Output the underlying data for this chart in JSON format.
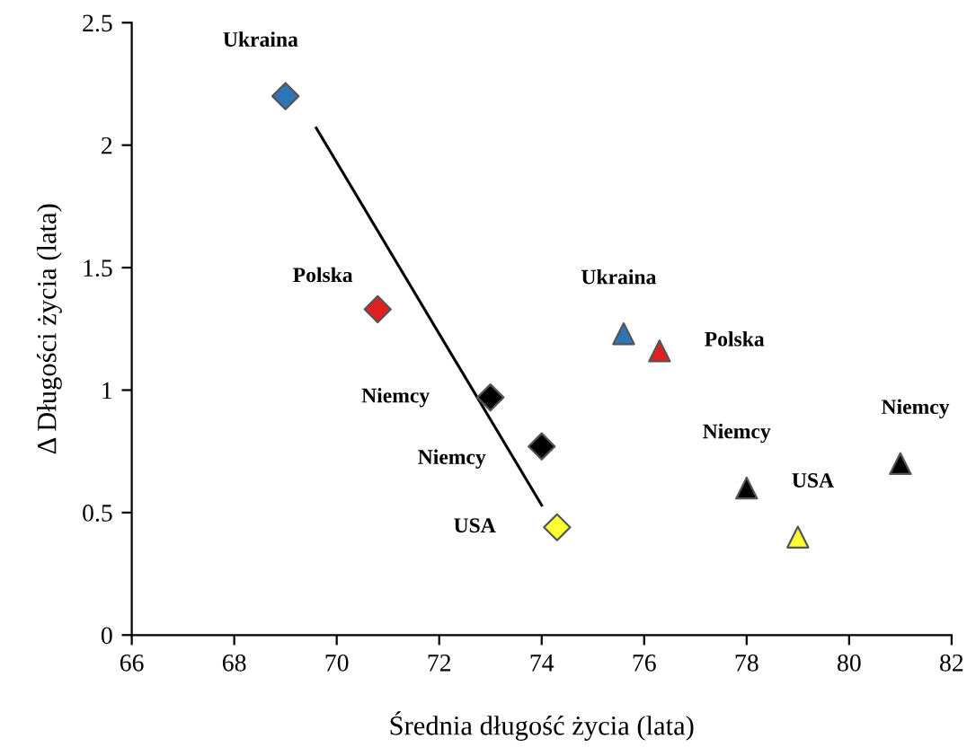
{
  "chart_data": {
    "type": "scatter",
    "xlabel": "Średnia długość życia (lata)",
    "ylabel": "Δ Długości życia (lata)",
    "xlim": [
      66,
      82
    ],
    "xticks": [
      66,
      68,
      70,
      72,
      74,
      76,
      78,
      80,
      82
    ],
    "ylim": [
      0,
      2.5
    ],
    "yticks": [
      0,
      0.5,
      1,
      1.5,
      2,
      2.5
    ],
    "grid": false,
    "legend": false,
    "series": [
      {
        "marker": "diamond",
        "x": [
          69,
          70.8,
          73,
          74,
          74.3
        ],
        "values": [
          2.2,
          1.33,
          0.97,
          0.77,
          0.44
        ],
        "colors": [
          "#2e75b6",
          "#e02020",
          "#000000",
          "#000000",
          "#ffff33"
        ]
      },
      {
        "marker": "triangle",
        "x": [
          75.6,
          76.3,
          78,
          79,
          81
        ],
        "values": [
          1.23,
          1.16,
          0.6,
          0.4,
          0.7
        ],
        "colors": [
          "#2e75b6",
          "#e02020",
          "#000000",
          "#ffff33",
          "#000000"
        ]
      },
      {
        "type": "line",
        "x": [
          69.6,
          74
        ],
        "values": [
          2.07,
          0.53
        ],
        "color": "#000000"
      }
    ],
    "annotations": [
      {
        "text": "Ukraina",
        "x": 69,
        "y": 2.2
      },
      {
        "text": "Polska",
        "x": 70.8,
        "y": 1.33
      },
      {
        "text": "Niemcy",
        "x": 73,
        "y": 0.97
      },
      {
        "text": "Niemcy",
        "x": 74,
        "y": 0.77
      },
      {
        "text": "USA",
        "x": 74.3,
        "y": 0.44
      },
      {
        "text": "Ukraina",
        "x": 75.6,
        "y": 1.23
      },
      {
        "text": "Polska",
        "x": 76.3,
        "y": 1.16
      },
      {
        "text": "Niemcy",
        "x": 78,
        "y": 0.6
      },
      {
        "text": "USA",
        "x": 79,
        "y": 0.4
      },
      {
        "text": "Niemcy",
        "x": 81,
        "y": 0.7
      }
    ]
  }
}
